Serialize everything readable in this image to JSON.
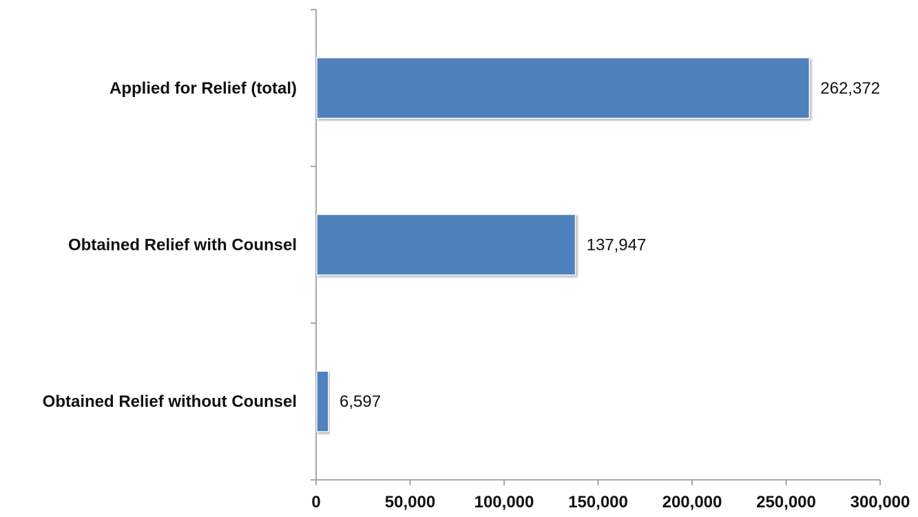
{
  "chart_data": {
    "type": "bar",
    "orientation": "horizontal",
    "categories": [
      "Applied for Relief (total)",
      "Obtained Relief with Counsel",
      "Obtained Relief without Counsel"
    ],
    "values": [
      262372,
      137947,
      6597
    ],
    "data_labels": [
      "262,372",
      "137,947",
      "6,597"
    ],
    "x_ticks": [
      "0",
      "50,000",
      "100,000",
      "150,000",
      "200,000",
      "250,000",
      "300,000"
    ],
    "xlim": [
      0,
      300000
    ],
    "title": "",
    "xlabel": "",
    "ylabel": "",
    "grid": false,
    "legend": "none",
    "bar_color": "#4f81bd"
  }
}
